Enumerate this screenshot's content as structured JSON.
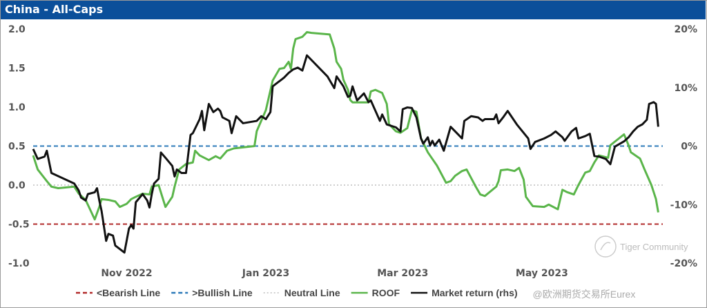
{
  "window": {
    "title": "China - All-Caps"
  },
  "chart_data": {
    "type": "line",
    "title": "China - All-Caps",
    "xlabel": "",
    "ylabel": "",
    "y2label": "",
    "xlim": [
      0,
      276
    ],
    "ylim": [
      -1.0,
      2.0
    ],
    "y2lim": [
      -20,
      20
    ],
    "yticks": [
      {
        "v": 2.0,
        "label": "2.0"
      },
      {
        "v": 1.5,
        "label": "1.5"
      },
      {
        "v": 1.0,
        "label": "1.0"
      },
      {
        "v": 0.5,
        "label": "0.5"
      },
      {
        "v": 0.0,
        "label": "0.0"
      },
      {
        "v": -0.5,
        "label": "-0.5"
      },
      {
        "v": -1.0,
        "label": "-1.0"
      }
    ],
    "y2ticks": [
      {
        "v": 20,
        "label": "20%"
      },
      {
        "v": 10,
        "label": "10%"
      },
      {
        "v": 0,
        "label": "0%"
      },
      {
        "v": -10,
        "label": "-10%"
      },
      {
        "v": -20,
        "label": "-20%"
      }
    ],
    "xticks": [
      {
        "v": 41,
        "label": "Nov 2022"
      },
      {
        "v": 102,
        "label": "Jan 2023"
      },
      {
        "v": 162,
        "label": "Mar 2023"
      },
      {
        "v": 223,
        "label": "May 2023"
      }
    ],
    "grid": false,
    "legend_position": "bottom",
    "reference_lines": [
      {
        "name": "<Bearish Line",
        "value": -0.5,
        "color": "#b22a2a",
        "style": "dashed"
      },
      {
        "name": ">Bullish Line",
        "value": 0.5,
        "color": "#2a78b8",
        "style": "dashed"
      },
      {
        "name": "Neutral Line",
        "value": 0.0,
        "color": "#bdbdbd",
        "style": "dotted"
      }
    ],
    "series": [
      {
        "name": "ROOF",
        "axis": "left",
        "color": "#5ab54a",
        "points": [
          [
            0,
            0.38
          ],
          [
            2,
            0.2
          ],
          [
            6,
            0.05
          ],
          [
            8,
            -0.02
          ],
          [
            11,
            -0.04
          ],
          [
            18,
            -0.02
          ],
          [
            20,
            -0.11
          ],
          [
            23,
            -0.19
          ],
          [
            27,
            -0.44
          ],
          [
            29,
            -0.28
          ],
          [
            30,
            -0.18
          ],
          [
            33,
            -0.19
          ],
          [
            36,
            -0.21
          ],
          [
            38,
            -0.28
          ],
          [
            41,
            -0.24
          ],
          [
            43,
            -0.18
          ],
          [
            45,
            -0.15
          ],
          [
            48,
            -0.11
          ],
          [
            51,
            -0.12
          ],
          [
            52,
            -0.02
          ],
          [
            55,
            0.0
          ],
          [
            58,
            -0.28
          ],
          [
            61,
            -0.15
          ],
          [
            62,
            -0.02
          ],
          [
            64,
            0.2
          ],
          [
            67,
            0.27
          ],
          [
            70,
            0.29
          ],
          [
            71,
            0.44
          ],
          [
            73,
            0.38
          ],
          [
            77,
            0.32
          ],
          [
            80,
            0.37
          ],
          [
            82,
            0.34
          ],
          [
            85,
            0.44
          ],
          [
            88,
            0.47
          ],
          [
            91,
            0.48
          ],
          [
            97,
            0.5
          ],
          [
            98,
            0.69
          ],
          [
            102,
            0.96
          ],
          [
            105,
            1.34
          ],
          [
            108,
            1.49
          ],
          [
            110,
            1.5
          ],
          [
            112,
            1.58
          ],
          [
            113,
            1.49
          ],
          [
            114,
            1.75
          ],
          [
            115,
            1.87
          ],
          [
            118,
            1.9
          ],
          [
            120,
            1.96
          ],
          [
            122,
            1.95
          ],
          [
            130,
            1.93
          ],
          [
            132,
            1.75
          ],
          [
            133,
            1.58
          ],
          [
            135,
            1.49
          ],
          [
            136,
            1.35
          ],
          [
            138,
            1.22
          ],
          [
            139,
            1.09
          ],
          [
            140,
            1.06
          ],
          [
            144,
            1.06
          ],
          [
            147,
            1.06
          ],
          [
            148,
            1.2
          ],
          [
            150,
            1.22
          ],
          [
            153,
            1.18
          ],
          [
            155,
            1.04
          ],
          [
            156,
            0.78
          ],
          [
            159,
            0.69
          ],
          [
            161,
            0.67
          ],
          [
            164,
            0.73
          ],
          [
            166,
            0.96
          ],
          [
            168,
            0.94
          ],
          [
            170,
            0.6
          ],
          [
            173,
            0.42
          ],
          [
            177,
            0.25
          ],
          [
            181,
            0.03
          ],
          [
            183,
            0.05
          ],
          [
            185,
            0.12
          ],
          [
            188,
            0.18
          ],
          [
            190,
            0.2
          ],
          [
            192,
            0.09
          ],
          [
            194,
            -0.02
          ],
          [
            196,
            -0.12
          ],
          [
            198,
            -0.14
          ],
          [
            203,
            -0.02
          ],
          [
            204,
            0.05
          ],
          [
            205,
            0.19
          ],
          [
            208,
            0.2
          ],
          [
            211,
            0.18
          ],
          [
            213,
            0.22
          ],
          [
            215,
            0.07
          ],
          [
            216,
            -0.15
          ],
          [
            219,
            -0.27
          ],
          [
            224,
            -0.28
          ],
          [
            226,
            -0.25
          ],
          [
            230,
            -0.31
          ],
          [
            232,
            -0.06
          ],
          [
            234,
            -0.09
          ],
          [
            237,
            -0.12
          ],
          [
            239,
            0.0
          ],
          [
            242,
            0.16
          ],
          [
            244,
            0.18
          ],
          [
            246,
            0.29
          ],
          [
            248,
            0.38
          ],
          [
            252,
            0.35
          ],
          [
            253,
            0.51
          ],
          [
            259,
            0.65
          ],
          [
            261,
            0.51
          ],
          [
            262,
            0.42
          ],
          [
            266,
            0.34
          ],
          [
            268,
            0.2
          ],
          [
            271,
            0.0
          ],
          [
            273,
            -0.18
          ],
          [
            274,
            -0.35
          ]
        ]
      },
      {
        "name": "Market return (rhs)",
        "axis": "right",
        "color": "#111111",
        "points": [
          [
            0,
            -0.5
          ],
          [
            2,
            -2.2
          ],
          [
            5,
            -1.8
          ],
          [
            6,
            -0.8
          ],
          [
            8,
            -4.6
          ],
          [
            18,
            -6.4
          ],
          [
            20,
            -7.6
          ],
          [
            21,
            -8.8
          ],
          [
            23,
            -9.3
          ],
          [
            24,
            -8.2
          ],
          [
            27,
            -7.9
          ],
          [
            28,
            -7.2
          ],
          [
            29,
            -9.3
          ],
          [
            30,
            -11.1
          ],
          [
            32,
            -16.2
          ],
          [
            33,
            -15.0
          ],
          [
            35,
            -15.3
          ],
          [
            36,
            -17.0
          ],
          [
            40,
            -18.2
          ],
          [
            42,
            -14.1
          ],
          [
            43,
            -13.5
          ],
          [
            44,
            -14.1
          ],
          [
            45,
            -9.6
          ],
          [
            48,
            -8.2
          ],
          [
            50,
            -9.3
          ],
          [
            51,
            -10.5
          ],
          [
            52,
            -8.2
          ],
          [
            53,
            -6.4
          ],
          [
            55,
            -5.6
          ],
          [
            56,
            -1.1
          ],
          [
            58,
            -2.0
          ],
          [
            61,
            -3.4
          ],
          [
            62,
            -5.2
          ],
          [
            63,
            -4.0
          ],
          [
            65,
            -4.6
          ],
          [
            67,
            -4.6
          ],
          [
            69,
            1.9
          ],
          [
            70,
            2.2
          ],
          [
            73,
            4.6
          ],
          [
            74,
            6.0
          ],
          [
            75,
            2.7
          ],
          [
            77,
            7.2
          ],
          [
            79,
            5.8
          ],
          [
            81,
            6.4
          ],
          [
            82,
            6.0
          ],
          [
            83,
            4.9
          ],
          [
            86,
            4.3
          ],
          [
            87,
            2.2
          ],
          [
            89,
            5.1
          ],
          [
            92,
            3.9
          ],
          [
            98,
            4.3
          ],
          [
            100,
            5.1
          ],
          [
            102,
            4.6
          ],
          [
            104,
            5.8
          ],
          [
            105,
            10.2
          ],
          [
            107,
            10.8
          ],
          [
            109,
            11.4
          ],
          [
            110,
            11.7
          ],
          [
            112,
            12.5
          ],
          [
            114,
            13.1
          ],
          [
            116,
            13.4
          ],
          [
            118,
            12.9
          ],
          [
            120,
            15.5
          ],
          [
            129,
            11.9
          ],
          [
            132,
            9.9
          ],
          [
            133,
            11.9
          ],
          [
            136,
            10.2
          ],
          [
            138,
            8.4
          ],
          [
            139,
            8.6
          ],
          [
            140,
            10.2
          ],
          [
            142,
            7.8
          ],
          [
            145,
            9.0
          ],
          [
            147,
            7.5
          ],
          [
            148,
            7.8
          ],
          [
            152,
            4.3
          ],
          [
            153,
            5.4
          ],
          [
            155,
            3.7
          ],
          [
            159,
            3.2
          ],
          [
            161,
            2.5
          ],
          [
            162,
            6.3
          ],
          [
            164,
            6.6
          ],
          [
            166,
            6.5
          ],
          [
            168,
            4.9
          ],
          [
            170,
            1.3
          ],
          [
            171,
            0.4
          ],
          [
            173,
            1.5
          ],
          [
            174,
            0.1
          ],
          [
            175,
            0.9
          ],
          [
            176,
            0.1
          ],
          [
            178,
            1.1
          ],
          [
            180,
            -0.8
          ],
          [
            183,
            3.3
          ],
          [
            188,
            1.3
          ],
          [
            189,
            4.3
          ],
          [
            192,
            5.1
          ],
          [
            195,
            4.9
          ],
          [
            197,
            4.3
          ],
          [
            198,
            4.6
          ],
          [
            202,
            4.6
          ],
          [
            203,
            5.4
          ],
          [
            204,
            3.9
          ],
          [
            206,
            4.9
          ],
          [
            208,
            6.0
          ],
          [
            212,
            3.7
          ],
          [
            217,
            1.3
          ],
          [
            218,
            -0.5
          ],
          [
            220,
            0.7
          ],
          [
            224,
            1.3
          ],
          [
            227,
            1.9
          ],
          [
            229,
            2.5
          ],
          [
            232,
            1.5
          ],
          [
            233,
            0.9
          ],
          [
            236,
            2.5
          ],
          [
            238,
            3.1
          ],
          [
            239,
            1.3
          ],
          [
            242,
            1.7
          ],
          [
            244,
            2.1
          ],
          [
            246,
            -1.7
          ],
          [
            248,
            -1.8
          ],
          [
            251,
            -2.2
          ],
          [
            253,
            -3.1
          ],
          [
            255,
            -0.1
          ],
          [
            259,
            0.8
          ],
          [
            261,
            1.5
          ],
          [
            263,
            2.5
          ],
          [
            265,
            3.3
          ],
          [
            267,
            3.7
          ],
          [
            269,
            4.5
          ],
          [
            270,
            7.2
          ],
          [
            272,
            7.5
          ],
          [
            273,
            7.2
          ],
          [
            274,
            3.3
          ]
        ]
      }
    ],
    "legend": [
      {
        "label": "<Bearish Line",
        "color": "#b22a2a",
        "style": "dashed"
      },
      {
        "label": ">Bullish Line",
        "color": "#2a78b8",
        "style": "dashed"
      },
      {
        "label": "Neutral Line",
        "color": "#bdbdbd",
        "style": "dotted"
      },
      {
        "label": "ROOF",
        "color": "#5ab54a",
        "style": "solid"
      },
      {
        "label": "Market return (rhs)",
        "color": "#111111",
        "style": "solid"
      }
    ]
  },
  "watermark": {
    "brand": "Tiger Community",
    "handle": "@欧洲期货交易所Eurex"
  }
}
